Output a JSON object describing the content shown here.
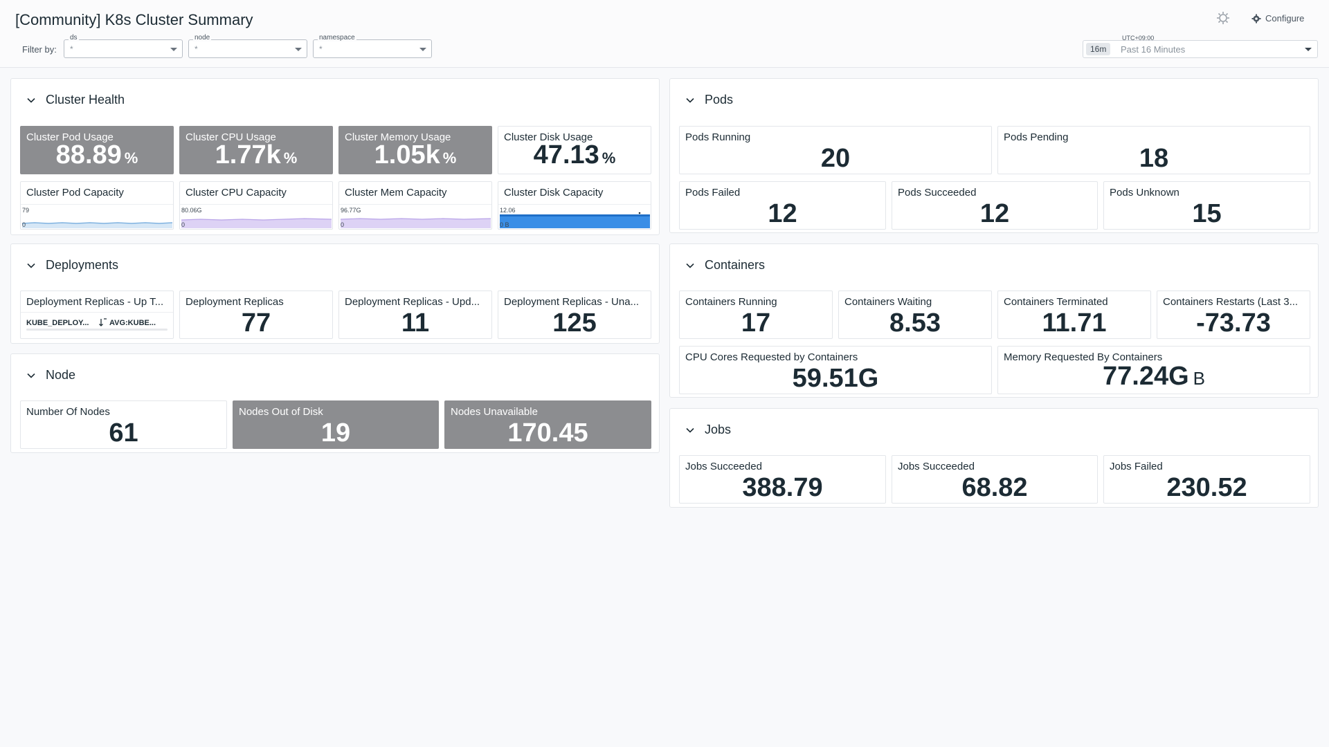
{
  "header": {
    "title": "[Community] K8s Cluster Summary",
    "filter_label": "Filter by:",
    "filters": [
      {
        "name": "ds",
        "value": "*"
      },
      {
        "name": "node",
        "value": "*"
      },
      {
        "name": "namespace",
        "value": "*"
      }
    ],
    "configure_label": "Configure",
    "timezone": "UTC+09:00",
    "time_pill": "16m",
    "time_range": "Past 16 Minutes"
  },
  "groups": {
    "cluster_health": {
      "title": "Cluster Health",
      "pod_usage": {
        "title": "Cluster Pod Usage",
        "value": "88.89",
        "unit": "%"
      },
      "cpu_usage": {
        "title": "Cluster CPU Usage",
        "value": "1.77k",
        "unit": "%"
      },
      "mem_usage": {
        "title": "Cluster Memory Usage",
        "value": "1.05k",
        "unit": "%"
      },
      "disk_usage": {
        "title": "Cluster Disk Usage",
        "value": "47.13",
        "unit": "%"
      },
      "pod_capacity": {
        "title": "Cluster Pod Capacity",
        "ymax": "79",
        "ymin": "0"
      },
      "cpu_capacity": {
        "title": "Cluster CPU Capacity",
        "ymax": "80.06G",
        "ymin": "0"
      },
      "mem_capacity": {
        "title": "Cluster Mem Capacity",
        "ymax": "96.77G",
        "ymin": "0"
      },
      "disk_capacity": {
        "title": "Cluster Disk Capacity",
        "ymax": "12.06",
        "ymin": "0 B"
      }
    },
    "deployments": {
      "title": "Deployments",
      "toplist": {
        "title": "Deployment Replicas - Up T...",
        "col1": "KUBE_DEPLOY...",
        "col2": "AVG:KUBE..."
      },
      "replicas": {
        "title": "Deployment Replicas",
        "value": "77"
      },
      "updated": {
        "title": "Deployment Replicas - Upd...",
        "value": "11"
      },
      "unavailable": {
        "title": "Deployment Replicas - Una...",
        "value": "125"
      }
    },
    "node": {
      "title": "Node",
      "count": {
        "title": "Number Of Nodes",
        "value": "61"
      },
      "out_of_disk": {
        "title": "Nodes Out of Disk",
        "value": "19"
      },
      "unavailable": {
        "title": "Nodes Unavailable",
        "value": "170.45"
      }
    },
    "pods": {
      "title": "Pods",
      "running": {
        "title": "Pods Running",
        "value": "20"
      },
      "pending": {
        "title": "Pods Pending",
        "value": "18"
      },
      "failed": {
        "title": "Pods Failed",
        "value": "12"
      },
      "succeeded": {
        "title": "Pods Succeeded",
        "value": "12"
      },
      "unknown": {
        "title": "Pods Unknown",
        "value": "15"
      }
    },
    "containers": {
      "title": "Containers",
      "running": {
        "title": "Containers Running",
        "value": "17"
      },
      "waiting": {
        "title": "Containers Waiting",
        "value": "8.53"
      },
      "terminated": {
        "title": "Containers Terminated",
        "value": "11.71"
      },
      "restarts": {
        "title": "Containers Restarts (Last 3...",
        "value": "-73.73"
      },
      "cpu_requested": {
        "title": "CPU Cores Requested by Containers",
        "value": "59.51G"
      },
      "mem_requested": {
        "title": "Memory Requested By Containers",
        "value": "77.24G",
        "unit": "B"
      }
    },
    "jobs": {
      "title": "Jobs",
      "succeeded_1": {
        "title": "Jobs Succeeded",
        "value": "388.79"
      },
      "succeeded_2": {
        "title": "Jobs Succeeded",
        "value": "68.82"
      },
      "failed": {
        "title": "Jobs Failed",
        "value": "230.52"
      }
    }
  },
  "colors": {
    "dark_tile": "#8c8d90",
    "pod_spark": "#7fb2e0",
    "cpu_spark": "#c7b5ec",
    "mem_spark": "#c7b5ec",
    "disk_spark": "#3a8ee6"
  }
}
